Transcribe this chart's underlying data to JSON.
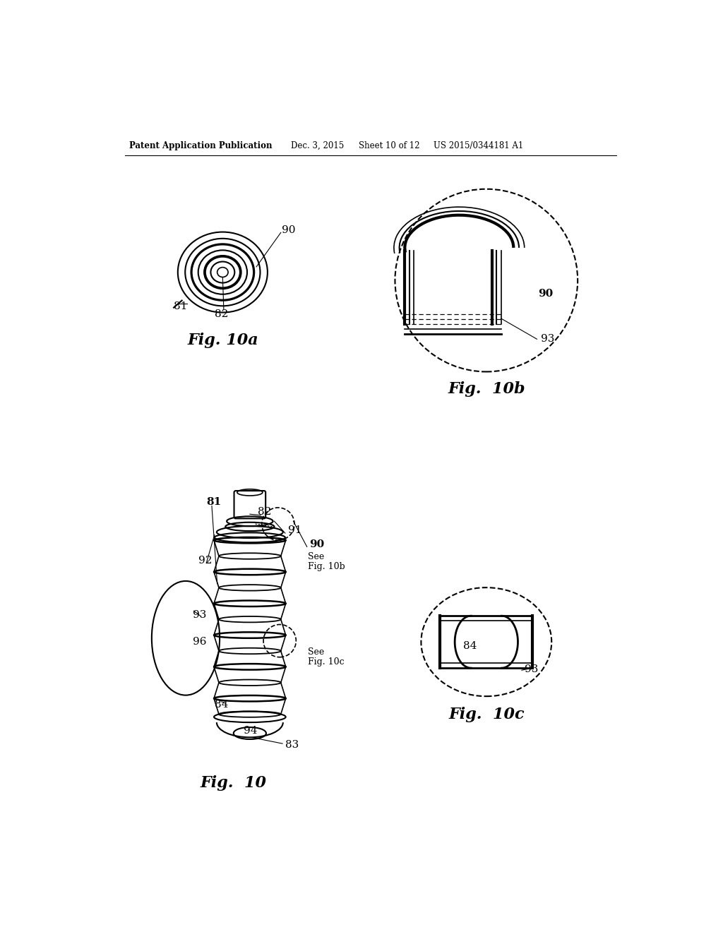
{
  "background_color": "#ffffff",
  "header_left": "Patent Application Publication",
  "header_date": "Dec. 3, 2015",
  "header_sheet": "Sheet 10 of 12",
  "header_patent": "US 2015/0344181 A1",
  "fig10a_caption": "Fig. 10a",
  "fig10b_caption": "Fig.  10b",
  "fig10_caption": "Fig.  10",
  "fig10c_caption": "Fig.  10c",
  "lc": "#000000",
  "lw": 1.5,
  "fs": 11,
  "fs_caption": 16
}
